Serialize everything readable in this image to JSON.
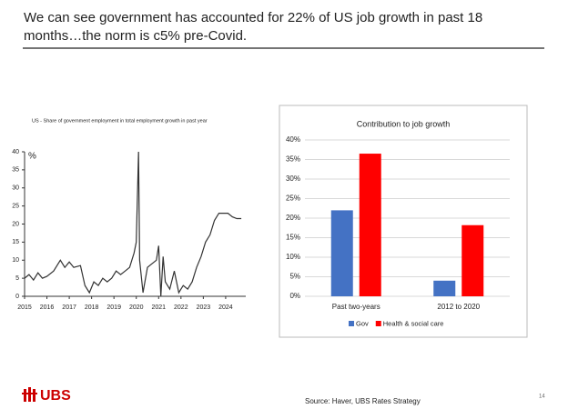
{
  "title": "We can see government has accounted for 22% of US job growth in past 18 months…the norm is c5% pre-Covid.",
  "logo": "UBS",
  "source": "Source: Haver, UBS Rates Strategy",
  "page_number": "14",
  "chart_data": [
    {
      "type": "line",
      "title": "US - Share of government employment in total employment growth in past year",
      "y_label": "%",
      "x": [
        2015.0,
        2015.2,
        2015.4,
        2015.6,
        2015.8,
        2016.0,
        2016.3,
        2016.6,
        2016.8,
        2017.0,
        2017.2,
        2017.5,
        2017.7,
        2017.9,
        2018.1,
        2018.3,
        2018.5,
        2018.7,
        2018.9,
        2019.1,
        2019.3,
        2019.5,
        2019.7,
        2019.9,
        2020.0,
        2020.1,
        2020.15,
        2020.3,
        2020.5,
        2020.7,
        2020.9,
        2021.0,
        2021.1,
        2021.2,
        2021.3,
        2021.5,
        2021.7,
        2021.9,
        2022.1,
        2022.3,
        2022.5,
        2022.7,
        2022.9,
        2023.1,
        2023.3,
        2023.5,
        2023.7,
        2023.9,
        2024.1,
        2024.3,
        2024.5,
        2024.7
      ],
      "values": [
        5,
        6,
        4.5,
        6.5,
        5,
        5.5,
        7,
        10,
        8,
        9.5,
        8,
        8.5,
        3,
        1,
        4,
        3,
        5,
        4,
        5,
        7,
        6,
        7,
        8,
        12,
        15,
        40,
        10,
        1,
        8,
        9,
        10,
        14,
        0,
        11,
        4,
        2,
        7,
        1,
        3,
        2,
        4,
        8,
        11,
        15,
        17,
        21,
        23,
        23,
        23,
        22,
        21.5,
        21.5
      ],
      "color": "#333333",
      "xlim": [
        2015,
        2024.9
      ],
      "xticks": [
        2015,
        2016,
        2017,
        2018,
        2019,
        2020,
        2021,
        2022,
        2023,
        2024
      ],
      "ylim": [
        0,
        40
      ],
      "yticks": [
        0,
        5,
        10,
        15,
        20,
        25,
        30,
        35,
        40
      ],
      "grid": false
    },
    {
      "type": "bar",
      "title": "Contribution to job growth",
      "categories": [
        "Past two-years",
        "2012 to 2020"
      ],
      "series": [
        {
          "name": "Gov",
          "color": "#4472c4",
          "values": [
            22,
            4
          ]
        },
        {
          "name": "Health & social care",
          "color": "#ff0000",
          "values": [
            36.5,
            18.2
          ]
        }
      ],
      "ylim": [
        0,
        40
      ],
      "yticks": [
        {
          "value": 0,
          "label": "0%"
        },
        {
          "value": 5,
          "label": "5%"
        },
        {
          "value": 10,
          "label": "10%"
        },
        {
          "value": 15,
          "label": "15%"
        },
        {
          "value": 20,
          "label": "20%"
        },
        {
          "value": 25,
          "label": "25%"
        },
        {
          "value": 30,
          "label": "30%"
        },
        {
          "value": 35,
          "label": "35%"
        },
        {
          "value": 40,
          "label": "40%"
        }
      ],
      "grid": true,
      "legend": "bottom"
    }
  ]
}
